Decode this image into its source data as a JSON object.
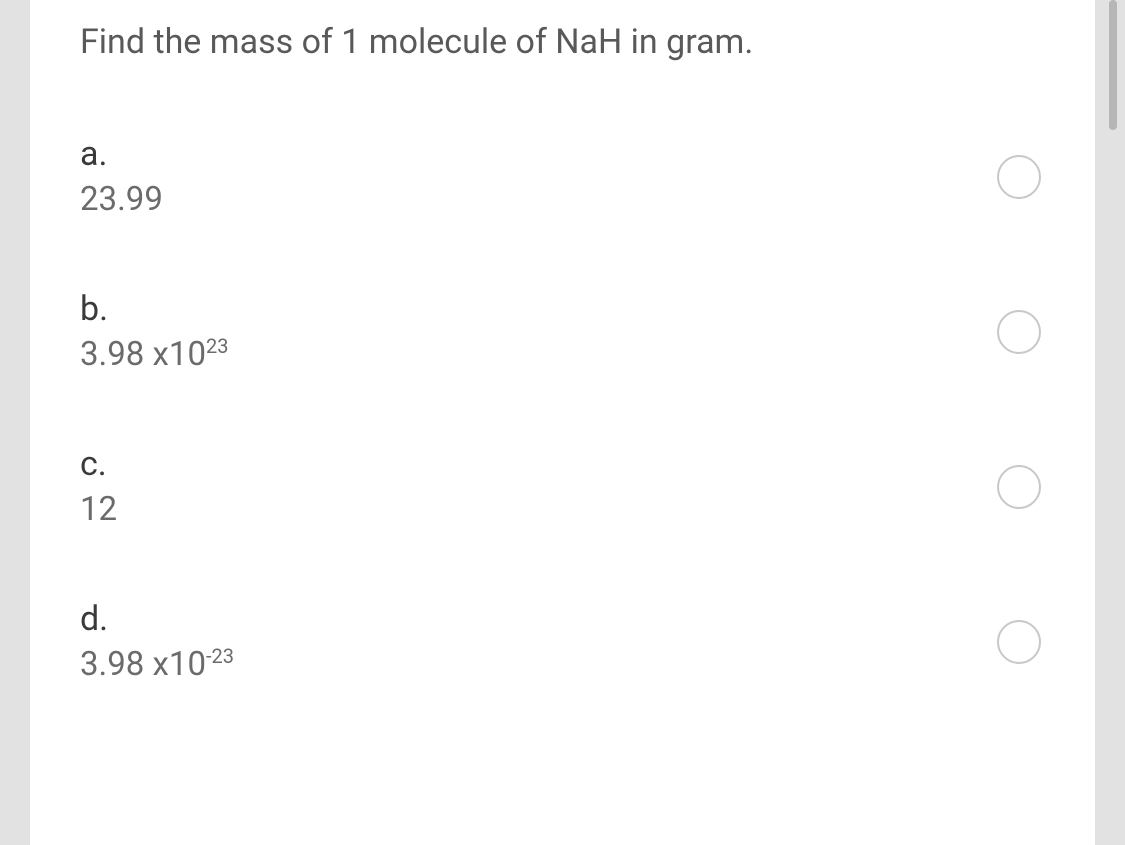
{
  "question": {
    "text": "Find the mass of 1 molecule of NaH  in gram."
  },
  "options": [
    {
      "letter": "a.",
      "value_html": "23.99"
    },
    {
      "letter": "b.",
      "value_html": "3.98 x10<sup>23</sup>"
    },
    {
      "letter": "c.",
      "value_html": "12"
    },
    {
      "letter": "d.",
      "value_html": "3.98 x10<sup>-23</sup>"
    }
  ],
  "colors": {
    "page_bg": "#e2e2e2",
    "card_bg": "#ffffff",
    "question_text": "#595959",
    "letter_text": "#3a3a3a",
    "value_text": "#6b6b6b",
    "radio_border": "#c8c8c8",
    "scrollbar": "#b6b6b6"
  }
}
